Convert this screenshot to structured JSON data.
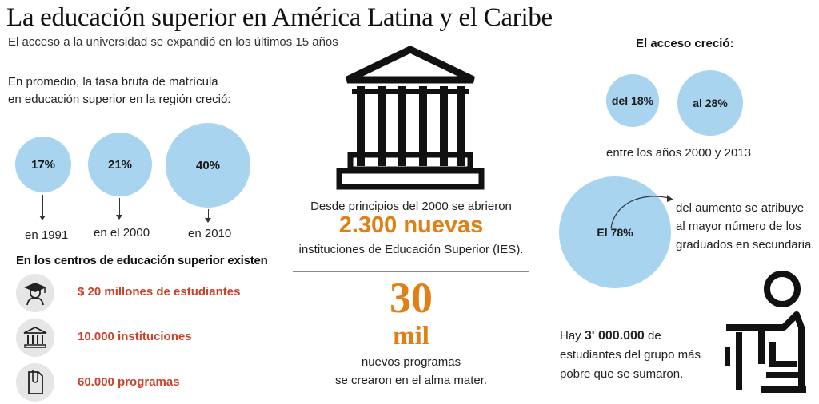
{
  "header": {
    "title": "La educación superior en América Latina y el Caribe",
    "subtitle": "El acceso a la universidad se expandió en los últimos 15 años"
  },
  "left": {
    "intro_line1": "En promedio, la tasa bruta de matrícula",
    "intro_line2": "en educación superior en la región creció:",
    "rates": [
      {
        "value": "17%",
        "year": "en 1991"
      },
      {
        "value": "21%",
        "year": "en el 2000"
      },
      {
        "value": "40%",
        "year": "en 2010"
      }
    ],
    "section_heading": "En los centros de educación superior existen",
    "stats": [
      {
        "icon": "graduate-icon",
        "text": "$ 20 millones de estudiantes"
      },
      {
        "icon": "institution-icon",
        "text": "10.000 instituciones"
      },
      {
        "icon": "document-clip-icon",
        "text": "60.000 programas"
      }
    ]
  },
  "center": {
    "institutions_line1": "Desde principios del 2000 se abrieron",
    "institutions_big": "2.300 nuevas",
    "institutions_line2": "instituciones de Educación Superior (IES).",
    "programs_number": "30",
    "programs_unit": "mil",
    "programs_line1": "nuevos programas",
    "programs_line2": "se crearon en el alma mater."
  },
  "right": {
    "access_title": "El acceso creció:",
    "access_from": "del 18%",
    "access_to": "al 28%",
    "access_period": "entre los años 2000 y 2013",
    "attribution_value": "El 78%",
    "attribution_line1": "del aumento se atribuye",
    "attribution_line2": "al mayor número de los",
    "attribution_line3": "graduados en secundaria.",
    "poor_line1_prefix": "Hay ",
    "poor_line1_number": "3' 000.000",
    "poor_line1_suffix": " de",
    "poor_line2": "estudiantes del grupo más",
    "poor_line3": "pobre que se sumaron."
  },
  "colors": {
    "circle_fill": "#a8d4f0",
    "accent_orange": "#e27f14",
    "accent_red": "#c8432a",
    "icon_bg": "#e6e6e6"
  }
}
